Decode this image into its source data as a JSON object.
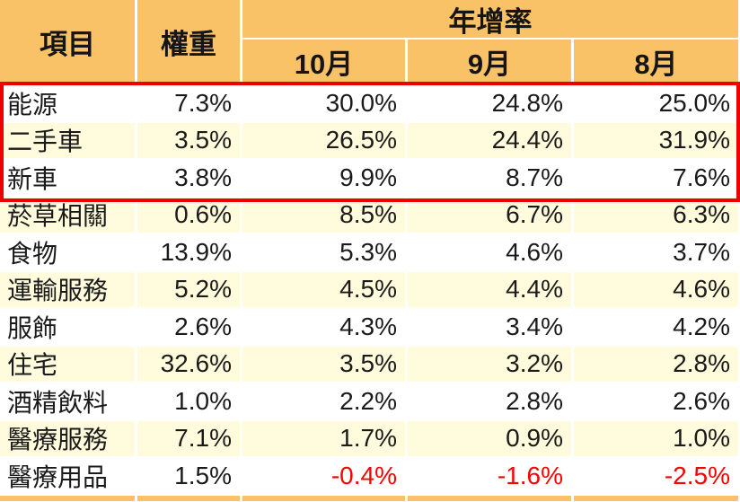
{
  "table": {
    "header": {
      "item": "項目",
      "weight": "權重",
      "yoy": "年增率",
      "months": [
        "10月",
        "9月",
        "8月"
      ]
    },
    "rows": [
      {
        "item": "能源",
        "weight": "7.3%",
        "m10": "30.0%",
        "m9": "24.8%",
        "m8": "25.0%"
      },
      {
        "item": "二手車",
        "weight": "3.5%",
        "m10": "26.5%",
        "m9": "24.4%",
        "m8": "31.9%"
      },
      {
        "item": "新車",
        "weight": "3.8%",
        "m10": "9.9%",
        "m9": "8.7%",
        "m8": "7.6%"
      },
      {
        "item": "菸草相關",
        "weight": "0.6%",
        "m10": "8.5%",
        "m9": "6.7%",
        "m8": "6.3%"
      },
      {
        "item": "食物",
        "weight": "13.9%",
        "m10": "5.3%",
        "m9": "4.6%",
        "m8": "3.7%"
      },
      {
        "item": "運輸服務",
        "weight": "5.2%",
        "m10": "4.5%",
        "m9": "4.4%",
        "m8": "4.6%"
      },
      {
        "item": "服飾",
        "weight": "2.6%",
        "m10": "4.3%",
        "m9": "3.4%",
        "m8": "4.2%"
      },
      {
        "item": "住宅",
        "weight": "32.6%",
        "m10": "3.5%",
        "m9": "3.2%",
        "m8": "2.8%"
      },
      {
        "item": "酒精飲料",
        "weight": "1.0%",
        "m10": "2.2%",
        "m9": "2.8%",
        "m8": "2.6%"
      },
      {
        "item": "醫療服務",
        "weight": "7.1%",
        "m10": "1.7%",
        "m9": "0.9%",
        "m8": "1.0%"
      },
      {
        "item": "醫療用品",
        "weight": "1.5%",
        "m10": "-0.4%",
        "m9": "-1.6%",
        "m8": "-2.5%"
      }
    ]
  },
  "highlight": {
    "rows": [
      "能源",
      "二手車",
      "新車"
    ],
    "border_color": "#EE0000"
  },
  "colors": {
    "header_bg": "#FAC267",
    "row_alt_bg": "#FFFBDC",
    "row_bg": "#FFFFFF",
    "negative_text": "#FA0000",
    "text": "#1A1A1A"
  },
  "chart_data": {
    "type": "table",
    "columns": [
      "項目",
      "權重",
      "年增率 10月",
      "年增率 9月",
      "年增率 8月"
    ],
    "rows": [
      [
        "能源",
        "7.3%",
        "30.0%",
        "24.8%",
        "25.0%"
      ],
      [
        "二手車",
        "3.5%",
        "26.5%",
        "24.4%",
        "31.9%"
      ],
      [
        "新車",
        "3.8%",
        "9.9%",
        "8.7%",
        "7.6%"
      ],
      [
        "菸草相關",
        "0.6%",
        "8.5%",
        "6.7%",
        "6.3%"
      ],
      [
        "食物",
        "13.9%",
        "5.3%",
        "4.6%",
        "3.7%"
      ],
      [
        "運輸服務",
        "5.2%",
        "4.5%",
        "4.4%",
        "4.6%"
      ],
      [
        "服飾",
        "2.6%",
        "4.3%",
        "3.4%",
        "4.2%"
      ],
      [
        "住宅",
        "32.6%",
        "3.5%",
        "3.2%",
        "2.8%"
      ],
      [
        "酒精飲料",
        "1.0%",
        "2.2%",
        "2.8%",
        "2.6%"
      ],
      [
        "醫療服務",
        "7.1%",
        "1.7%",
        "0.9%",
        "1.0%"
      ],
      [
        "醫療用品",
        "1.5%",
        "-0.4%",
        "-1.6%",
        "-2.5%"
      ]
    ],
    "annotations": "Rows 能源, 二手車, 新車 are outlined with a red box; negative values in the 醫療用品 row are shown in red."
  }
}
